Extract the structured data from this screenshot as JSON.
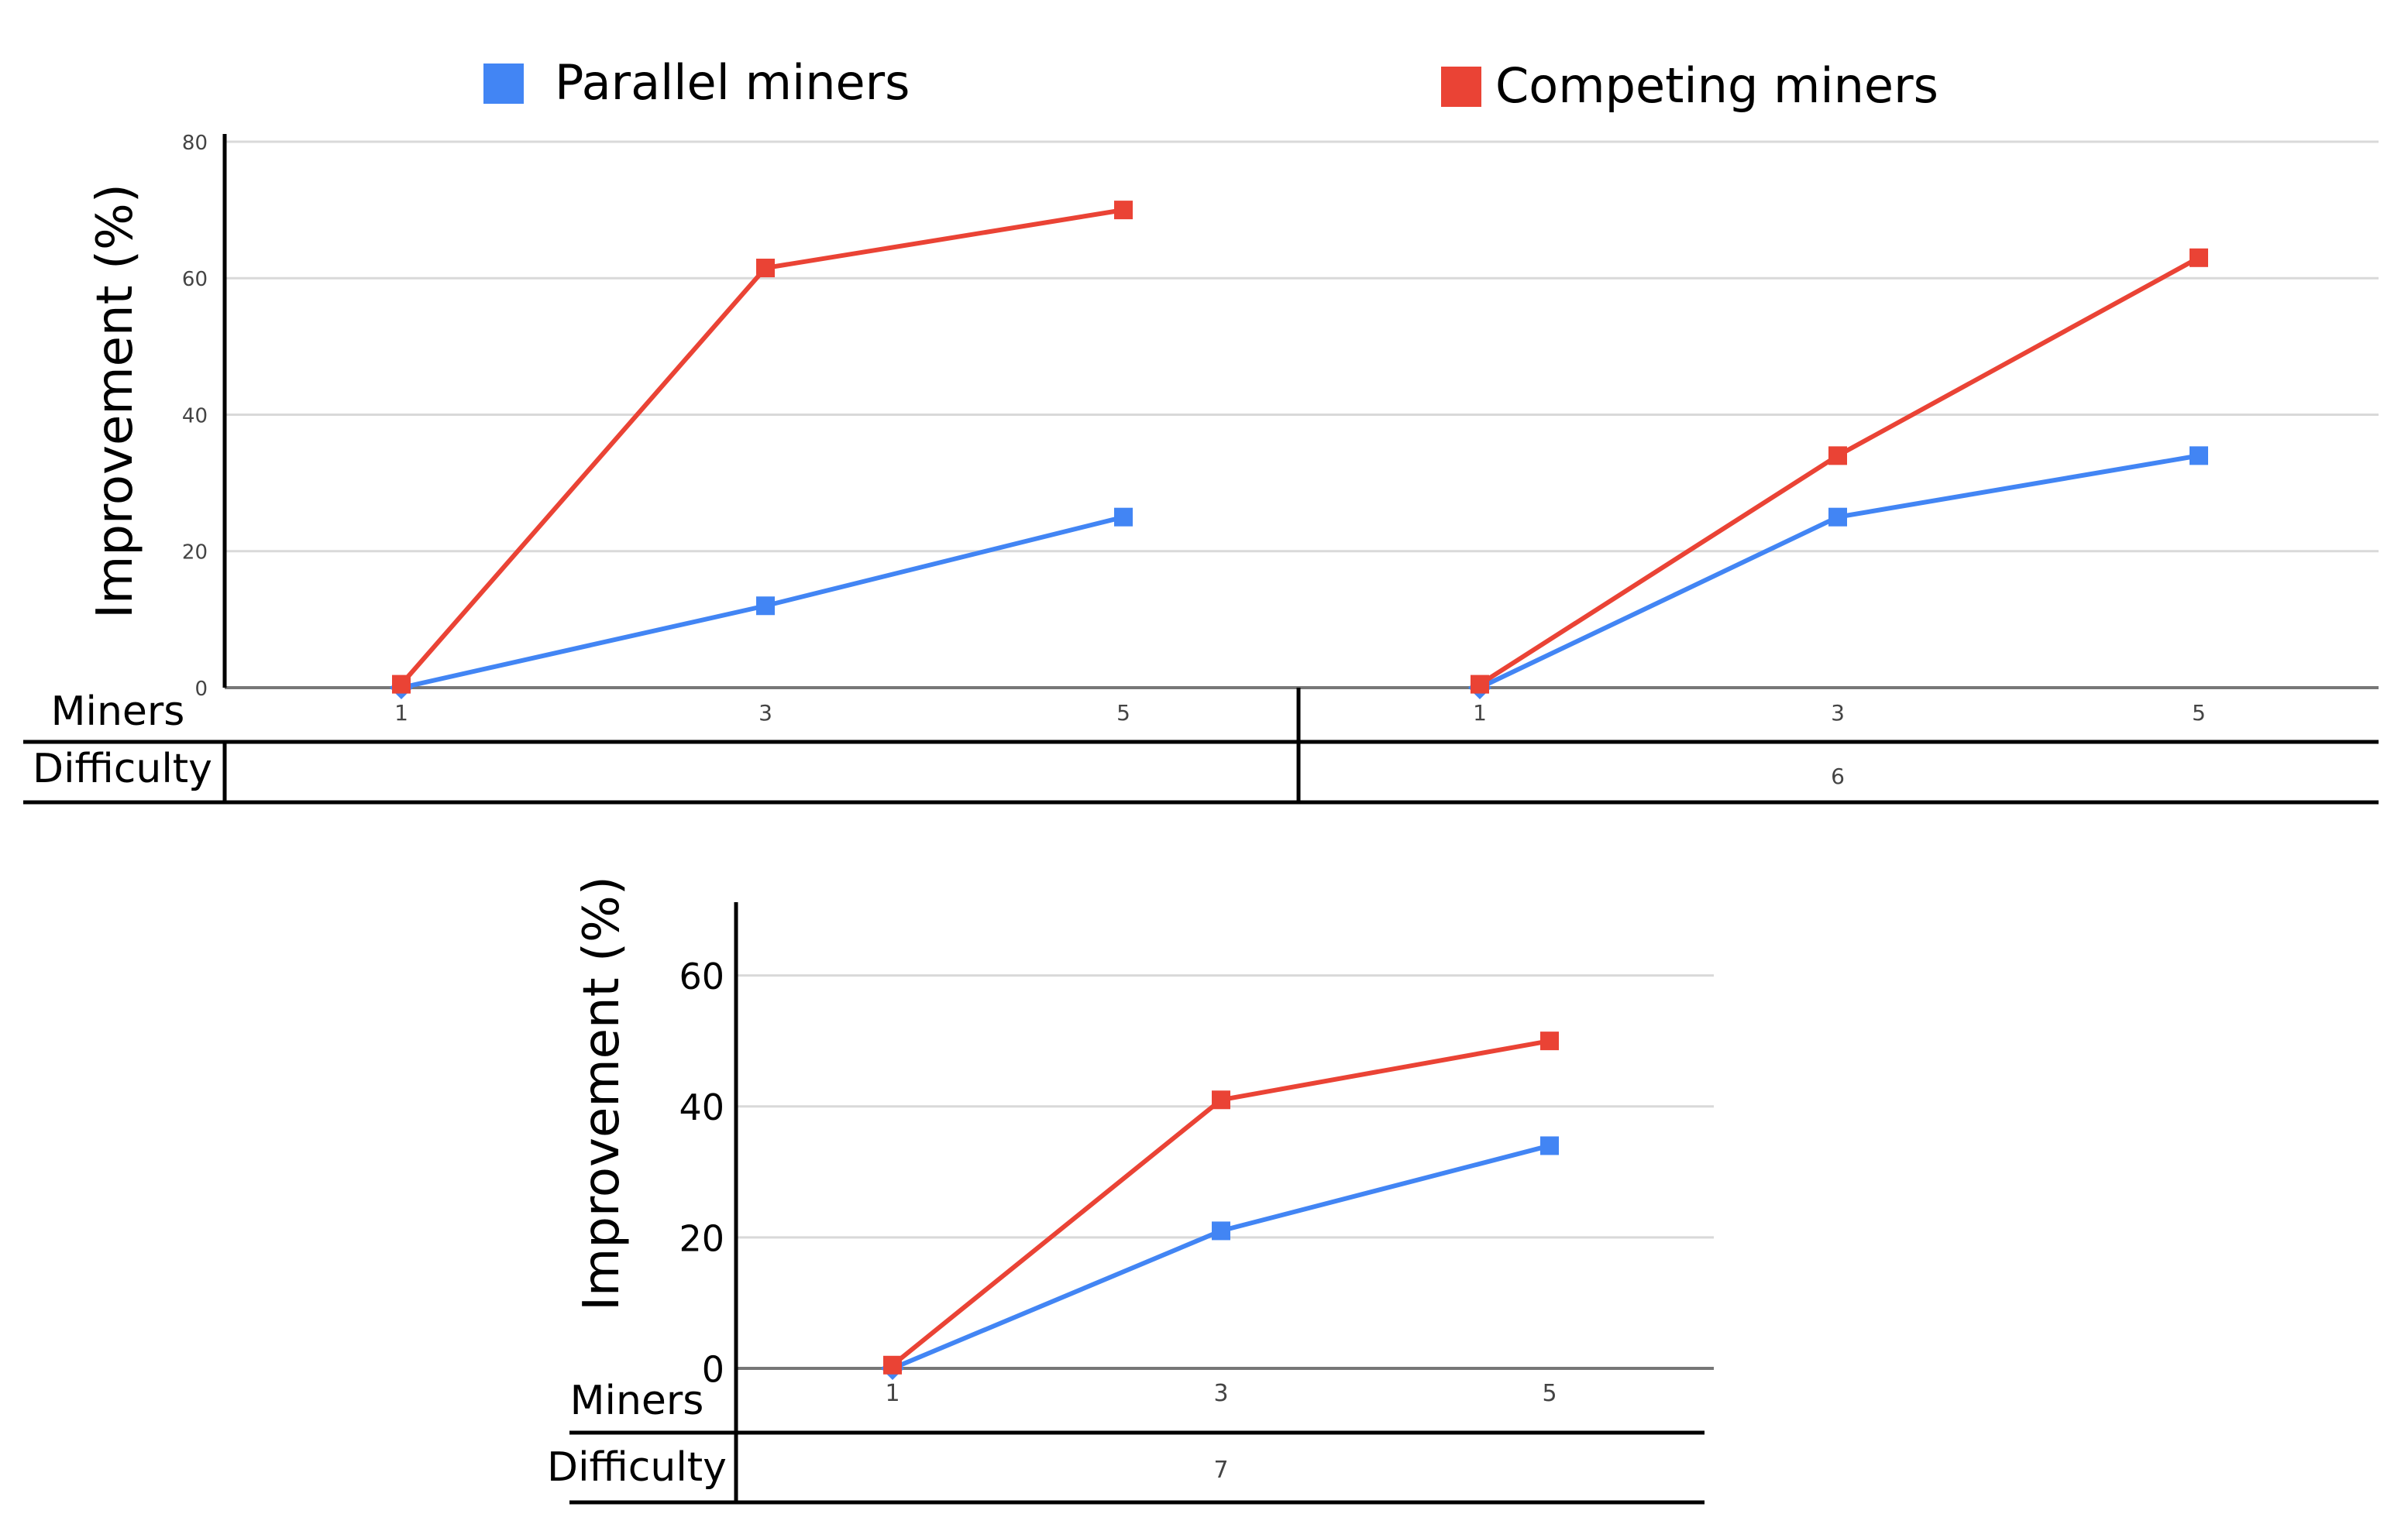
{
  "legend": {
    "parallel_label": "Parallel miners",
    "competing_label": "Competing miners",
    "parallel_color": "#4285f4",
    "competing_color": "#ea4335"
  },
  "table_labels": {
    "miners": "Miners",
    "difficulty": "Difficulty"
  },
  "chart_data": [
    {
      "type": "line",
      "ylabel": "Improvement (%)",
      "ylim": [
        0,
        80
      ],
      "yticks": [
        0,
        20,
        40,
        60,
        80
      ],
      "difficulty": "",
      "categories": [
        "1",
        "3",
        "5"
      ],
      "series": [
        {
          "name": "Parallel miners",
          "values": [
            0,
            12,
            25
          ]
        },
        {
          "name": "Competing miners",
          "values": [
            0.5,
            61.5,
            70
          ]
        }
      ],
      "grid": true
    },
    {
      "type": "line",
      "ylabel": "",
      "ylim": [
        0,
        80
      ],
      "yticks": [],
      "difficulty": "6",
      "categories": [
        "1",
        "3",
        "5"
      ],
      "series": [
        {
          "name": "Parallel miners",
          "values": [
            0,
            25,
            34
          ]
        },
        {
          "name": "Competing miners",
          "values": [
            0.5,
            34,
            63
          ]
        }
      ],
      "grid": true
    },
    {
      "type": "line",
      "ylabel": "Improvement (%)",
      "ylim": [
        0,
        70
      ],
      "yticks": [
        0,
        20,
        40,
        60
      ],
      "difficulty": "7",
      "categories": [
        "1",
        "3",
        "5"
      ],
      "series": [
        {
          "name": "Parallel miners",
          "values": [
            0,
            21,
            34
          ]
        },
        {
          "name": "Competing miners",
          "values": [
            0.5,
            41,
            50
          ]
        }
      ],
      "grid": true
    }
  ]
}
